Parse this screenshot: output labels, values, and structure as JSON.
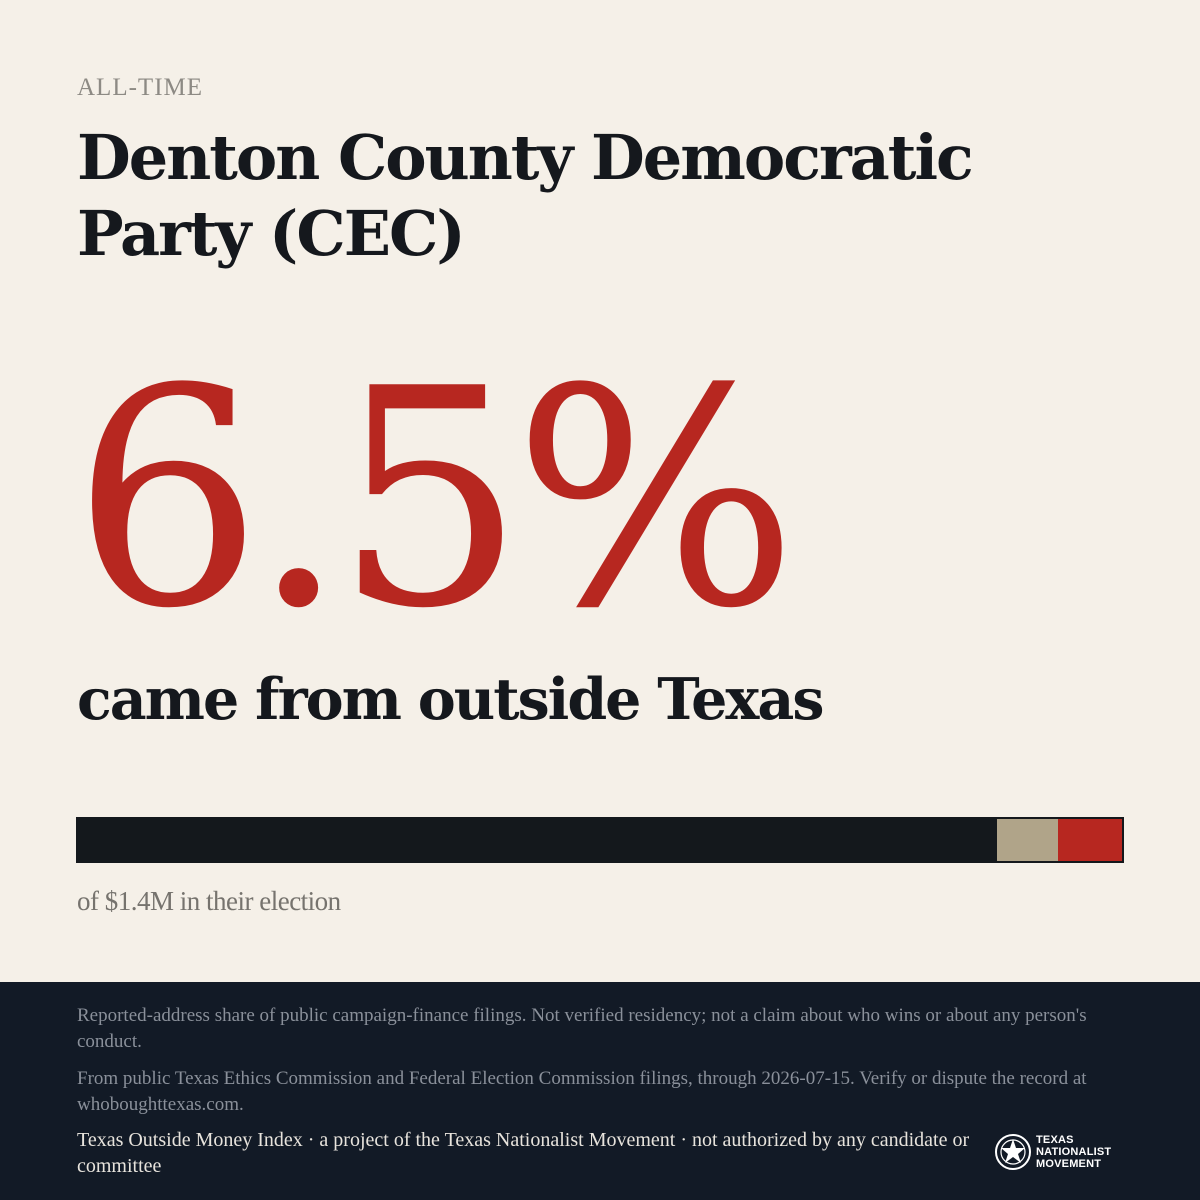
{
  "header": {
    "eyebrow": "ALL-TIME",
    "title": "Denton County Democratic Party (CEC)"
  },
  "stat": {
    "share_label": "6.5%",
    "share_value": 6.5,
    "tagline": "came from outside Texas"
  },
  "bar": {
    "segments": [
      {
        "key": "texas",
        "color": "#14181c"
      },
      {
        "key": "unknown",
        "color": "#b0a489"
      },
      {
        "key": "outside",
        "color": "#b72720",
        "percent": 6.5
      }
    ]
  },
  "caption": "of $1.4M in their election",
  "footer": {
    "note_1": "Reported-address share of public campaign-finance filings. Not verified residency; not a claim about who wins or about any person's conduct.",
    "note_2": "From public Texas Ethics Commission and Federal Election Commission filings, through 2026-07-15. Verify or dispute the record at whoboughttexas.com.",
    "credit": "Texas Outside Money Index · a project of the Texas Nationalist Movement · not authorized by any candidate or committee"
  },
  "logo": {
    "icon": "star-seal-icon",
    "line_1": "TEXAS",
    "line_2": "NATIONALIST",
    "line_3": "MOVEMENT"
  },
  "colors": {
    "background": "#f5f0e8",
    "accent": "#b72720",
    "ink": "#15181d",
    "footer_bg": "#121a26",
    "unknown_segment": "#b0a489"
  }
}
